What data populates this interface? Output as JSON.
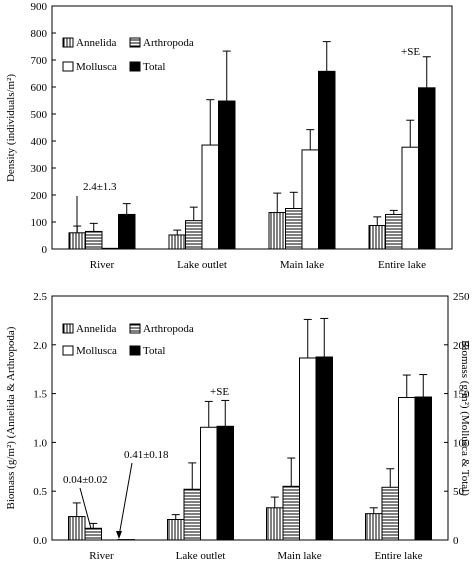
{
  "chart_data": [
    {
      "type": "bar",
      "categories": [
        "River",
        "Lake outlet",
        "Main lake",
        "Entire lake"
      ],
      "ylabel": "Density (individuals/m²)",
      "ylim": [
        0,
        900
      ],
      "yticks": [
        "0",
        "100",
        "200",
        "300",
        "400",
        "500",
        "600",
        "700",
        "800",
        "900"
      ],
      "grid": false,
      "legend": {
        "placement": "top-left",
        "columns": 2
      },
      "series": [
        {
          "name": "Annelida",
          "pattern": "vertical-lines",
          "values": [
            60,
            52,
            135,
            87
          ],
          "se": [
            25,
            18,
            72,
            32
          ]
        },
        {
          "name": "Arthropoda",
          "pattern": "horizontal-lines",
          "values": [
            65,
            105,
            150,
            128
          ],
          "se": [
            30,
            50,
            60,
            15
          ]
        },
        {
          "name": "Mollusca",
          "pattern": "white",
          "values": [
            2.4,
            385,
            367,
            377
          ],
          "se": [
            1.3,
            168,
            75,
            100
          ]
        },
        {
          "name": "Total",
          "pattern": "black",
          "values": [
            128,
            548,
            658,
            597
          ],
          "se": [
            40,
            185,
            110,
            115
          ]
        }
      ],
      "annotations": [
        {
          "text": "2.4±1.3",
          "target": "River / Mollusca"
        },
        {
          "text": "+SE",
          "target": "Entire lake / Total"
        }
      ]
    },
    {
      "type": "bar",
      "categories": [
        "River",
        "Lake outlet",
        "Main lake",
        "Entire lake"
      ],
      "ylabel": "Biomass (g/m²) (Annelida & Arthropoda)",
      "y2label": "Biomass (g/m²) (Mollusca & Total)",
      "ylim": [
        0,
        2.5
      ],
      "y2lim": [
        0,
        250
      ],
      "yticks": [
        "0.0",
        "0.5",
        "1.0",
        "1.5",
        "2.0",
        "2.5"
      ],
      "y2ticks": [
        "0",
        "50",
        "100",
        "150",
        "200",
        "250"
      ],
      "grid": false,
      "legend": {
        "placement": "top-left",
        "columns": 2
      },
      "series": [
        {
          "name": "Annelida",
          "pattern": "vertical-lines",
          "axis": "left",
          "values": [
            0.24,
            0.21,
            0.33,
            0.27
          ],
          "se": [
            0.14,
            0.05,
            0.11,
            0.06
          ]
        },
        {
          "name": "Arthropoda",
          "pattern": "horizontal-lines",
          "axis": "left",
          "values": [
            0.12,
            0.52,
            0.55,
            0.54
          ],
          "se": [
            0.05,
            0.27,
            0.29,
            0.19
          ]
        },
        {
          "name": "Mollusca",
          "pattern": "white",
          "axis": "right",
          "values": [
            0.04,
            115.5,
            186.5,
            146.0
          ],
          "se": [
            0.02,
            26.5,
            39.5,
            23.0
          ]
        },
        {
          "name": "Total",
          "pattern": "black",
          "axis": "right",
          "values": [
            0.41,
            116.5,
            187.5,
            146.5
          ],
          "se": [
            0.18,
            26.5,
            39.5,
            23.0
          ]
        }
      ],
      "annotations": [
        {
          "text": "0.04±0.02",
          "target": "River / Mollusca"
        },
        {
          "text": "0.41±0.18",
          "target": "River / Total"
        },
        {
          "text": "+SE",
          "target": "Lake outlet / Total"
        }
      ]
    }
  ]
}
